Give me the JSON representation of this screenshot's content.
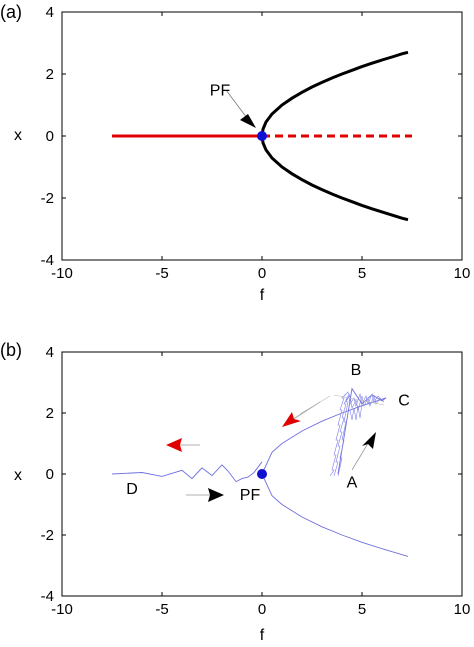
{
  "chart_data": [
    {
      "panel_label": "(a)",
      "type": "line",
      "xlabel": "f",
      "ylabel": "x",
      "xlim": [
        -10,
        10
      ],
      "ylim": [
        -4,
        4
      ],
      "x_ticks": [
        "-10",
        "-5",
        "0",
        "5",
        "10"
      ],
      "y_ticks": [
        "4",
        "2",
        "0",
        "-2",
        "-4"
      ],
      "x_tick_values": [
        -10,
        -5,
        0,
        5,
        10
      ],
      "y_tick_values": [
        4,
        2,
        0,
        -2,
        -4
      ],
      "grid": false,
      "series": [
        {
          "style": "solid",
          "color": "#e00000",
          "x": [
            -7.5,
            0
          ],
          "y": [
            0,
            0
          ]
        },
        {
          "style": "dashed",
          "color": "#e00000",
          "x": [
            0,
            7.5
          ],
          "y": [
            0,
            0
          ]
        },
        {
          "style": "solid",
          "color": "#000000",
          "function": "sqrt",
          "x": [
            0,
            0.05,
            0.2,
            0.5,
            1,
            1.5,
            2,
            2.5,
            3,
            3.5,
            4,
            4.5,
            5,
            5.5,
            6,
            6.5,
            7,
            7.3
          ],
          "y": [
            0,
            0.22,
            0.45,
            0.71,
            1.0,
            1.22,
            1.41,
            1.58,
            1.73,
            1.87,
            2.0,
            2.12,
            2.24,
            2.35,
            2.45,
            2.55,
            2.65,
            2.7
          ]
        },
        {
          "style": "solid",
          "color": "#000000",
          "function": "-sqrt",
          "x": [
            0,
            0.05,
            0.2,
            0.5,
            1,
            1.5,
            2,
            2.5,
            3,
            3.5,
            4,
            4.5,
            5,
            5.5,
            6,
            6.5,
            7,
            7.3
          ],
          "y": [
            0,
            -0.22,
            -0.45,
            -0.71,
            -1.0,
            -1.22,
            -1.41,
            -1.58,
            -1.73,
            -1.87,
            -2.0,
            -2.12,
            -2.24,
            -2.35,
            -2.45,
            -2.55,
            -2.65,
            -2.7
          ]
        }
      ],
      "points": [
        {
          "x": 0,
          "y": 0,
          "color": "#1010d0"
        }
      ],
      "annotations": [
        {
          "text": "PF",
          "x": -2.1,
          "y": 1.3
        }
      ]
    },
    {
      "panel_label": "(b)",
      "type": "line",
      "xlabel": "f",
      "ylabel": "x",
      "xlim": [
        -10,
        10
      ],
      "ylim": [
        -4,
        4
      ],
      "x_ticks": [
        "-10",
        "-5",
        "0",
        "5",
        "10"
      ],
      "y_ticks": [
        "4",
        "2",
        "0",
        "-2",
        "-4"
      ],
      "x_tick_values": [
        -10,
        -5,
        0,
        5,
        10
      ],
      "y_tick_values": [
        4,
        2,
        0,
        -2,
        -4
      ],
      "grid": false,
      "series": [
        {
          "style": "solid",
          "color": "#7070e0",
          "segment": "lower-branch",
          "x": [
            0,
            0.5,
            1,
            2,
            3,
            4,
            5,
            6,
            7.3
          ],
          "y": [
            0,
            -0.71,
            -1.0,
            -1.41,
            -1.73,
            -2.0,
            -2.24,
            -2.45,
            -2.7
          ]
        },
        {
          "style": "solid",
          "color": "#7070e0",
          "segment": "upper-branch-to-C",
          "x": [
            0,
            0.5,
            1,
            2,
            3,
            4,
            5,
            6,
            6.2
          ],
          "y": [
            0,
            0.71,
            1.0,
            1.41,
            1.73,
            2.0,
            2.24,
            2.45,
            2.5
          ]
        },
        {
          "style": "solid",
          "color": "#7070e0",
          "segment": "ringing-D",
          "x": [
            -7.5,
            -6,
            -5,
            -4,
            -3.5,
            -3,
            -2.5,
            -2,
            -1.7,
            -1.3,
            -1,
            -0.7,
            -0.4,
            0
          ],
          "y": [
            0,
            0.05,
            -0.08,
            0.12,
            -0.15,
            0.2,
            -0.05,
            0.3,
            0.1,
            -0.25,
            -0.15,
            -0.1,
            0.05,
            0.4
          ]
        },
        {
          "style": "solid",
          "color": "#7070e0",
          "segment": "sweep-A-to-C",
          "x": [
            3.8,
            4.0,
            4.5,
            5.0,
            5.5,
            6.0,
            6.2
          ],
          "y": [
            0,
            0.8,
            2.8,
            2.3,
            2.6,
            2.4,
            2.5
          ]
        }
      ],
      "points": [
        {
          "x": 0,
          "y": 0,
          "color": "#1010d0"
        }
      ],
      "annotations": [
        {
          "text": "B",
          "x": 4.7,
          "y": 3.25
        },
        {
          "text": "C",
          "x": 7.1,
          "y": 2.25
        },
        {
          "text": "A",
          "x": 4.5,
          "y": -0.45
        },
        {
          "text": "D",
          "x": -6.5,
          "y": -0.65
        },
        {
          "text": "PF",
          "x": -0.6,
          "y": -0.85
        }
      ]
    }
  ]
}
